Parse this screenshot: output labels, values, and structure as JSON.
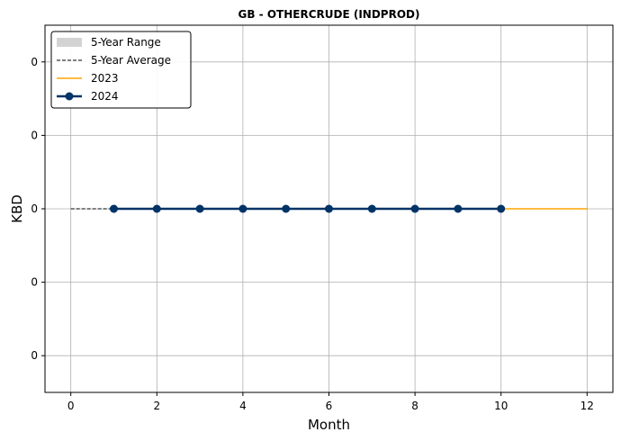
{
  "chart_data": {
    "type": "line",
    "title": "GB - OTHERCRUDE (INDPROD)",
    "xlabel": "Month",
    "ylabel": "KBD",
    "xlim": [
      -0.6,
      12.6
    ],
    "xticks": [
      0,
      2,
      4,
      6,
      8,
      10,
      12
    ],
    "ytick_labels": [
      "0",
      "0",
      "0",
      "0",
      "0"
    ],
    "grid": true,
    "legend_position": "top-left",
    "legend": [
      "5-Year Range",
      "5-Year Average",
      "2023",
      "2024"
    ],
    "series": [
      {
        "name": "5-Year Range",
        "style": "band",
        "color": "#d3d3d3",
        "x": [
          0,
          1,
          2,
          3,
          4,
          5,
          6,
          7,
          8,
          9,
          10,
          11,
          12
        ],
        "low": [
          0,
          0,
          0,
          0,
          0,
          0,
          0,
          0,
          0,
          0,
          0,
          0,
          0
        ],
        "high": [
          0,
          0,
          0,
          0,
          0,
          0,
          0,
          0,
          0,
          0,
          0,
          0,
          0
        ]
      },
      {
        "name": "5-Year Average",
        "style": "dashed",
        "color": "#000000",
        "x": [
          0,
          1,
          2,
          3,
          4,
          5,
          6,
          7,
          8,
          9,
          10,
          11,
          12
        ],
        "values": [
          0,
          0,
          0,
          0,
          0,
          0,
          0,
          0,
          0,
          0,
          0,
          0,
          0
        ]
      },
      {
        "name": "2023",
        "style": "line",
        "color": "#ffa500",
        "x": [
          1,
          2,
          3,
          4,
          5,
          6,
          7,
          8,
          9,
          10,
          11,
          12
        ],
        "values": [
          0,
          0,
          0,
          0,
          0,
          0,
          0,
          0,
          0,
          0,
          0,
          0
        ]
      },
      {
        "name": "2024",
        "style": "line-marker",
        "color": "#003366",
        "x": [
          1,
          2,
          3,
          4,
          5,
          6,
          7,
          8,
          9,
          10
        ],
        "values": [
          0,
          0,
          0,
          0,
          0,
          0,
          0,
          0,
          0,
          0
        ]
      }
    ]
  }
}
